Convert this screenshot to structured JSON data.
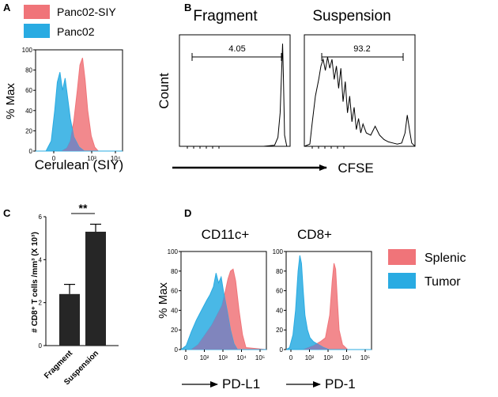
{
  "colors": {
    "red": "#f07479",
    "blue": "#29abe2",
    "overlap": "#8b7fb8",
    "bar": "#262626",
    "arrow": "#000000"
  },
  "chart_data": [
    {
      "panel": "A",
      "type": "area",
      "xlabel": "Cerulean (SIY)",
      "ylabel": "% Max",
      "y_ticks": [
        "0",
        "20",
        "40",
        "60",
        "80",
        "100"
      ],
      "x_ticks": [
        "0",
        "10³",
        "10⁴"
      ],
      "xlim": [
        0,
        5
      ],
      "ylim": [
        0,
        100
      ],
      "legend": [
        "Panc02-SIY",
        "Panc02"
      ],
      "series": [
        {
          "name": "Panc02-SIY",
          "color": "red",
          "x": [
            0,
            1.5,
            1.8,
            2.0,
            2.2,
            2.4,
            2.55,
            2.7,
            2.85,
            3.0,
            3.2,
            3.4,
            3.6,
            5
          ],
          "y": [
            0,
            0,
            3,
            10,
            30,
            60,
            85,
            92,
            70,
            40,
            15,
            4,
            0,
            0
          ]
        },
        {
          "name": "Panc02",
          "color": "blue",
          "x": [
            0,
            0.6,
            0.9,
            1.1,
            1.25,
            1.4,
            1.55,
            1.7,
            1.85,
            2.0,
            2.2,
            2.5,
            2.8,
            5
          ],
          "y": [
            0,
            0,
            10,
            40,
            68,
            78,
            60,
            72,
            52,
            32,
            14,
            4,
            0,
            0
          ]
        }
      ]
    },
    {
      "panel": "B",
      "type": "line",
      "ylabel": "Count",
      "xlabel": "CFSE",
      "xlim": [
        0,
        5
      ],
      "ylim": [
        0,
        100
      ],
      "plots": [
        {
          "title": "Fragment",
          "gate": "4.05",
          "x": [
            0,
            3.8,
            4.3,
            4.45,
            4.55,
            4.62,
            4.66,
            4.7,
            4.75,
            4.85,
            5
          ],
          "y": [
            0,
            0,
            1,
            8,
            30,
            70,
            92,
            60,
            10,
            0,
            0
          ]
        },
        {
          "title": "Suspension",
          "gate": "93.2",
          "x": [
            0,
            0.25,
            0.35,
            0.5,
            0.65,
            0.75,
            0.85,
            0.95,
            1.05,
            1.15,
            1.25,
            1.35,
            1.45,
            1.55,
            1.65,
            1.75,
            1.85,
            1.95,
            2.05,
            2.15,
            2.25,
            2.35,
            2.45,
            2.55,
            2.65,
            2.8,
            3.0,
            3.2,
            3.4,
            3.6,
            3.8,
            4.0,
            4.2,
            4.4,
            4.55,
            4.65,
            4.75,
            4.85,
            5
          ],
          "y": [
            0,
            2,
            20,
            45,
            60,
            72,
            78,
            68,
            80,
            70,
            78,
            60,
            72,
            52,
            70,
            40,
            58,
            30,
            45,
            22,
            35,
            15,
            25,
            12,
            20,
            12,
            10,
            18,
            10,
            6,
            4,
            3,
            2,
            3,
            12,
            28,
            15,
            3,
            0
          ]
        }
      ]
    },
    {
      "panel": "C",
      "type": "bar",
      "ylabel": "# CD8⁺ T cells /mm³ (X 10³)",
      "categories": [
        "Fragment",
        "Suspension"
      ],
      "values": [
        2.4,
        5.3
      ],
      "errors": [
        0.45,
        0.35
      ],
      "ylim": [
        0,
        6
      ],
      "y_ticks": [
        "0",
        "2",
        "4",
        "6"
      ],
      "significance": "**"
    },
    {
      "panel": "D",
      "type": "area",
      "ylabel": "% Max",
      "legend": [
        "Splenic",
        "Tumor"
      ],
      "xlim": [
        0,
        5
      ],
      "ylim": [
        0,
        100
      ],
      "y_ticks": [
        "0",
        "20",
        "40",
        "60",
        "80",
        "100"
      ],
      "x_ticks": [
        "0",
        "10²",
        "10³",
        "10⁴",
        "10⁵"
      ],
      "plots": [
        {
          "title": "CD11c+",
          "xlabel": "PD-L1",
          "series": [
            {
              "name": "Splenic",
              "color": "red",
              "x": [
                0,
                0.6,
                1.0,
                1.4,
                1.8,
                2.1,
                2.4,
                2.6,
                2.75,
                2.9,
                3.05,
                3.2,
                3.4,
                3.6,
                3.8,
                5
              ],
              "y": [
                0,
                0,
                5,
                15,
                25,
                35,
                45,
                60,
                72,
                80,
                82,
                70,
                40,
                15,
                2,
                0
              ]
            },
            {
              "name": "Tumor",
              "color": "blue",
              "x": [
                0,
                0.3,
                0.6,
                0.9,
                1.2,
                1.5,
                1.7,
                1.9,
                2.05,
                2.2,
                2.35,
                2.5,
                2.7,
                2.9,
                3.1,
                3.3,
                5
              ],
              "y": [
                0,
                4,
                18,
                30,
                40,
                50,
                56,
                64,
                78,
                68,
                74,
                58,
                40,
                20,
                6,
                0,
                0
              ]
            }
          ]
        },
        {
          "title": "CD8+",
          "xlabel": "PD-1",
          "series": [
            {
              "name": "Splenic",
              "color": "red",
              "x": [
                0,
                1.0,
                1.6,
                2.0,
                2.3,
                2.55,
                2.7,
                2.8,
                2.9,
                3.0,
                3.1,
                3.3,
                3.6,
                5
              ],
              "y": [
                0,
                0,
                4,
                8,
                12,
                35,
                70,
                88,
                82,
                50,
                20,
                5,
                0,
                0
              ]
            },
            {
              "name": "Tumor",
              "color": "blue",
              "x": [
                0,
                0.2,
                0.4,
                0.55,
                0.7,
                0.8,
                0.9,
                1.0,
                1.1,
                1.25,
                1.4,
                1.6,
                1.9,
                2.2,
                2.5,
                5
              ],
              "y": [
                0,
                2,
                15,
                40,
                80,
                96,
                88,
                60,
                35,
                20,
                12,
                8,
                5,
                2,
                0,
                0
              ]
            }
          ]
        }
      ]
    }
  ],
  "labels": {
    "panel_a": "A",
    "panel_b": "B",
    "panel_c": "C",
    "panel_d": "D",
    "b_arrow_label": "CFSE",
    "d_arrow1_label": "PD-L1",
    "d_arrow2_label": "PD-1"
  }
}
